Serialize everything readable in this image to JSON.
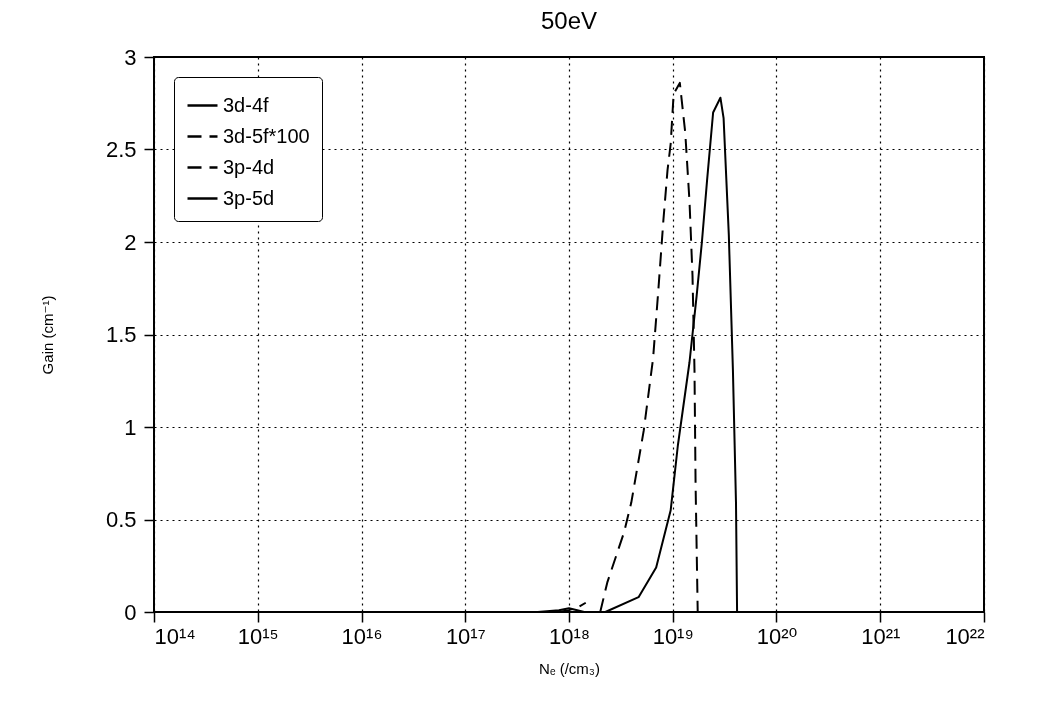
{
  "chart_data": {
    "type": "line",
    "title": "50eV",
    "xlabel": "Nₑ (/cm₃)",
    "ylabel": "Gain (cm⁻¹)",
    "log": "x",
    "grid": true,
    "legend": "top left",
    "xlim": [
      100000000000000.0,
      1e+22
    ],
    "ylim": [
      0,
      3
    ],
    "xticks": [
      {
        "value": 100000000000000.0,
        "label": "10¹⁴"
      },
      {
        "value": 1000000000000000.0,
        "label": "10¹⁵"
      },
      {
        "value": 1e+16,
        "label": "10¹⁶"
      },
      {
        "value": 1e+17,
        "label": "10¹⁷"
      },
      {
        "value": 1e+18,
        "label": "10¹⁸"
      },
      {
        "value": 1e+19,
        "label": "10¹⁹"
      },
      {
        "value": 1e+20,
        "label": "10²⁰"
      },
      {
        "value": 1e+21,
        "label": "10²¹"
      },
      {
        "value": 1e+22,
        "label": "10²²"
      }
    ],
    "yticks": [
      0,
      0.5,
      1,
      1.5,
      2,
      2.5,
      3
    ],
    "series": [
      {
        "name": "3d-4f",
        "color": "#000000",
        "line_style": "solid",
        "x": [
          5e+17,
          8e+17,
          1e+18,
          1.2e+18,
          1.4e+18
        ],
        "values": [
          0,
          0.01,
          0.02,
          0.01,
          0
        ]
      },
      {
        "name": "3d-5f*100",
        "color": "#000000",
        "line_style": "dashed",
        "x": [
          7.9e+17,
          1e+18,
          1.26e+18,
          1.45e+18
        ],
        "values": [
          0,
          0.01,
          0.03,
          0.05
        ]
      },
      {
        "name": "3p-4d",
        "color": "#000000",
        "line_style": "dashed",
        "x": [
          2e+18,
          2.34e+18,
          3.39e+18,
          3.98e+18,
          5.25e+18,
          6.46e+18,
          7.24e+18,
          8.13e+18,
          8.91e+18,
          9.55e+18,
          1.02e+19,
          1.17e+19,
          1.32e+19,
          1.45e+19,
          1.55e+19,
          1.62e+19,
          1.66e+19,
          1.74e+19
        ],
        "values": [
          0,
          0.16,
          0.43,
          0.59,
          0.98,
          1.37,
          1.73,
          2.12,
          2.39,
          2.53,
          2.8,
          2.86,
          2.59,
          2.22,
          1.82,
          1.31,
          0.69,
          0
        ]
      },
      {
        "name": "3p-5d",
        "color": "#000000",
        "line_style": "solid",
        "x": [
          1e+17,
          1e+18,
          2.24e+18,
          4.68e+18,
          6.92e+18,
          9.55e+18,
          1.12e+19,
          1.45e+19,
          1.7e+19,
          1.91e+19,
          2.14e+19,
          2.45e+19,
          2.88e+19,
          3.09e+19,
          3.47e+19,
          3.8e+19,
          4.07e+19,
          4.17e+19
        ],
        "values": [
          0,
          0,
          0,
          0.08,
          0.24,
          0.55,
          0.9,
          1.35,
          1.71,
          2.0,
          2.33,
          2.7,
          2.78,
          2.67,
          2.04,
          1.31,
          0.59,
          0
        ]
      }
    ]
  }
}
